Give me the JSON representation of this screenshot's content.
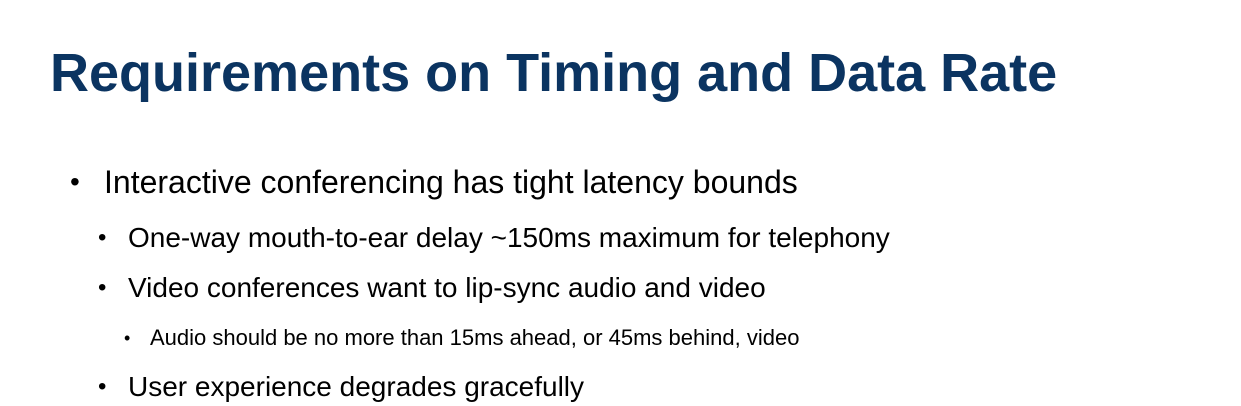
{
  "slide": {
    "title": "Requirements on Timing and Data Rate",
    "title_color": "#0b3461",
    "bullets": [
      {
        "level": 1,
        "text": "Interactive conferencing has tight latency bounds"
      },
      {
        "level": 2,
        "text": "One-way mouth-to-ear delay ~150ms maximum for telephony"
      },
      {
        "level": 2,
        "text": "Video conferences want to lip-sync audio and video"
      },
      {
        "level": 3,
        "text": "Audio should be no more than 15ms ahead, or 45ms behind, video"
      },
      {
        "level": 2,
        "text": "User experience degrades gracefully"
      }
    ],
    "bullet_glyph": "•"
  }
}
